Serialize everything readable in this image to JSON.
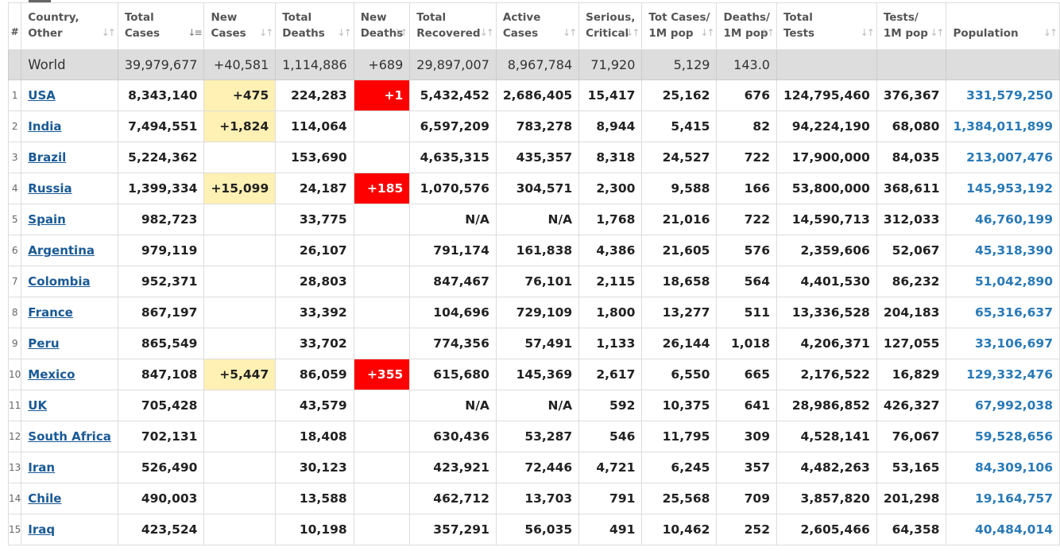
{
  "header": {
    "columns": [
      {
        "line1": "#",
        "line2": ""
      },
      {
        "line1": "Country,",
        "line2": "Other"
      },
      {
        "line1": "Total",
        "line2": "Cases"
      },
      {
        "line1": "New",
        "line2": "Cases"
      },
      {
        "line1": "Total",
        "line2": "Deaths"
      },
      {
        "line1": "New",
        "line2": "Deaths"
      },
      {
        "line1": "Total",
        "line2": "Recovered"
      },
      {
        "line1": "Active",
        "line2": "Cases"
      },
      {
        "line1": "Serious,",
        "line2": "Critical"
      },
      {
        "line1": "Tot Cases/",
        "line2": "1M pop"
      },
      {
        "line1": "Deaths/",
        "line2": "1M pop"
      },
      {
        "line1": "Total",
        "line2": "Tests"
      },
      {
        "line1": "Tests/",
        "line2": "1M pop"
      },
      {
        "line1": "Population",
        "line2": ""
      }
    ],
    "sorted_column": "Total Cases"
  },
  "world": {
    "label": "World",
    "total_cases": "39,979,677",
    "new_cases": "+40,581",
    "total_deaths": "1,114,886",
    "new_deaths": "+689",
    "total_recovered": "29,897,007",
    "active_cases": "8,967,784",
    "serious_critical": "71,920",
    "cases_per_1m": "5,129",
    "deaths_per_1m": "143.0",
    "total_tests": "",
    "tests_per_1m": "",
    "population": ""
  },
  "rows": [
    {
      "num": "1",
      "country": "USA",
      "total_cases": "8,343,140",
      "new_cases": "+475",
      "total_deaths": "224,283",
      "new_deaths": "+1",
      "total_recovered": "5,432,452",
      "active_cases": "2,686,405",
      "serious_critical": "15,417",
      "cases_per_1m": "25,162",
      "deaths_per_1m": "676",
      "total_tests": "124,795,460",
      "tests_per_1m": "376,367",
      "population": "331,579,250"
    },
    {
      "num": "2",
      "country": "India",
      "total_cases": "7,494,551",
      "new_cases": "+1,824",
      "total_deaths": "114,064",
      "new_deaths": "",
      "total_recovered": "6,597,209",
      "active_cases": "783,278",
      "serious_critical": "8,944",
      "cases_per_1m": "5,415",
      "deaths_per_1m": "82",
      "total_tests": "94,224,190",
      "tests_per_1m": "68,080",
      "population": "1,384,011,899"
    },
    {
      "num": "3",
      "country": "Brazil",
      "total_cases": "5,224,362",
      "new_cases": "",
      "total_deaths": "153,690",
      "new_deaths": "",
      "total_recovered": "4,635,315",
      "active_cases": "435,357",
      "serious_critical": "8,318",
      "cases_per_1m": "24,527",
      "deaths_per_1m": "722",
      "total_tests": "17,900,000",
      "tests_per_1m": "84,035",
      "population": "213,007,476"
    },
    {
      "num": "4",
      "country": "Russia",
      "total_cases": "1,399,334",
      "new_cases": "+15,099",
      "total_deaths": "24,187",
      "new_deaths": "+185",
      "total_recovered": "1,070,576",
      "active_cases": "304,571",
      "serious_critical": "2,300",
      "cases_per_1m": "9,588",
      "deaths_per_1m": "166",
      "total_tests": "53,800,000",
      "tests_per_1m": "368,611",
      "population": "145,953,192"
    },
    {
      "num": "5",
      "country": "Spain",
      "total_cases": "982,723",
      "new_cases": "",
      "total_deaths": "33,775",
      "new_deaths": "",
      "total_recovered": "N/A",
      "active_cases": "N/A",
      "serious_critical": "1,768",
      "cases_per_1m": "21,016",
      "deaths_per_1m": "722",
      "total_tests": "14,590,713",
      "tests_per_1m": "312,033",
      "population": "46,760,199"
    },
    {
      "num": "6",
      "country": "Argentina",
      "total_cases": "979,119",
      "new_cases": "",
      "total_deaths": "26,107",
      "new_deaths": "",
      "total_recovered": "791,174",
      "active_cases": "161,838",
      "serious_critical": "4,386",
      "cases_per_1m": "21,605",
      "deaths_per_1m": "576",
      "total_tests": "2,359,606",
      "tests_per_1m": "52,067",
      "population": "45,318,390"
    },
    {
      "num": "7",
      "country": "Colombia",
      "total_cases": "952,371",
      "new_cases": "",
      "total_deaths": "28,803",
      "new_deaths": "",
      "total_recovered": "847,467",
      "active_cases": "76,101",
      "serious_critical": "2,115",
      "cases_per_1m": "18,658",
      "deaths_per_1m": "564",
      "total_tests": "4,401,530",
      "tests_per_1m": "86,232",
      "population": "51,042,890"
    },
    {
      "num": "8",
      "country": "France",
      "total_cases": "867,197",
      "new_cases": "",
      "total_deaths": "33,392",
      "new_deaths": "",
      "total_recovered": "104,696",
      "active_cases": "729,109",
      "serious_critical": "1,800",
      "cases_per_1m": "13,277",
      "deaths_per_1m": "511",
      "total_tests": "13,336,528",
      "tests_per_1m": "204,183",
      "population": "65,316,637"
    },
    {
      "num": "9",
      "country": "Peru",
      "total_cases": "865,549",
      "new_cases": "",
      "total_deaths": "33,702",
      "new_deaths": "",
      "total_recovered": "774,356",
      "active_cases": "57,491",
      "serious_critical": "1,133",
      "cases_per_1m": "26,144",
      "deaths_per_1m": "1,018",
      "total_tests": "4,206,371",
      "tests_per_1m": "127,055",
      "population": "33,106,697"
    },
    {
      "num": "10",
      "country": "Mexico",
      "total_cases": "847,108",
      "new_cases": "+5,447",
      "total_deaths": "86,059",
      "new_deaths": "+355",
      "total_recovered": "615,680",
      "active_cases": "145,369",
      "serious_critical": "2,617",
      "cases_per_1m": "6,550",
      "deaths_per_1m": "665",
      "total_tests": "2,176,522",
      "tests_per_1m": "16,829",
      "population": "129,332,476"
    },
    {
      "num": "11",
      "country": "UK",
      "total_cases": "705,428",
      "new_cases": "",
      "total_deaths": "43,579",
      "new_deaths": "",
      "total_recovered": "N/A",
      "active_cases": "N/A",
      "serious_critical": "592",
      "cases_per_1m": "10,375",
      "deaths_per_1m": "641",
      "total_tests": "28,986,852",
      "tests_per_1m": "426,327",
      "population": "67,992,038"
    },
    {
      "num": "12",
      "country": "South Africa",
      "total_cases": "702,131",
      "new_cases": "",
      "total_deaths": "18,408",
      "new_deaths": "",
      "total_recovered": "630,436",
      "active_cases": "53,287",
      "serious_critical": "546",
      "cases_per_1m": "11,795",
      "deaths_per_1m": "309",
      "total_tests": "4,528,141",
      "tests_per_1m": "76,067",
      "population": "59,528,656"
    },
    {
      "num": "13",
      "country": "Iran",
      "total_cases": "526,490",
      "new_cases": "",
      "total_deaths": "30,123",
      "new_deaths": "",
      "total_recovered": "423,921",
      "active_cases": "72,446",
      "serious_critical": "4,721",
      "cases_per_1m": "6,245",
      "deaths_per_1m": "357",
      "total_tests": "4,482,263",
      "tests_per_1m": "53,165",
      "population": "84,309,106"
    },
    {
      "num": "14",
      "country": "Chile",
      "total_cases": "490,003",
      "new_cases": "",
      "total_deaths": "13,588",
      "new_deaths": "",
      "total_recovered": "462,712",
      "active_cases": "13,703",
      "serious_critical": "791",
      "cases_per_1m": "25,568",
      "deaths_per_1m": "709",
      "total_tests": "3,857,820",
      "tests_per_1m": "201,298",
      "population": "19,164,757"
    },
    {
      "num": "15",
      "country": "Iraq",
      "total_cases": "423,524",
      "new_cases": "",
      "total_deaths": "10,198",
      "new_deaths": "",
      "total_recovered": "357,291",
      "active_cases": "56,035",
      "serious_critical": "491",
      "cases_per_1m": "10,462",
      "deaths_per_1m": "252",
      "total_tests": "2,605,466",
      "tests_per_1m": "64,358",
      "population": "40,484,014"
    }
  ],
  "colors": {
    "new_cases_highlight": "#fff0b3",
    "new_deaths_highlight": "#ff0000",
    "link": "#1a5a96",
    "population": "#2a7ab8",
    "world_row": "#dddddd"
  },
  "icons": {
    "sort_idle": "sort-arrows-icon",
    "sort_active": "sort-descending-icon"
  }
}
